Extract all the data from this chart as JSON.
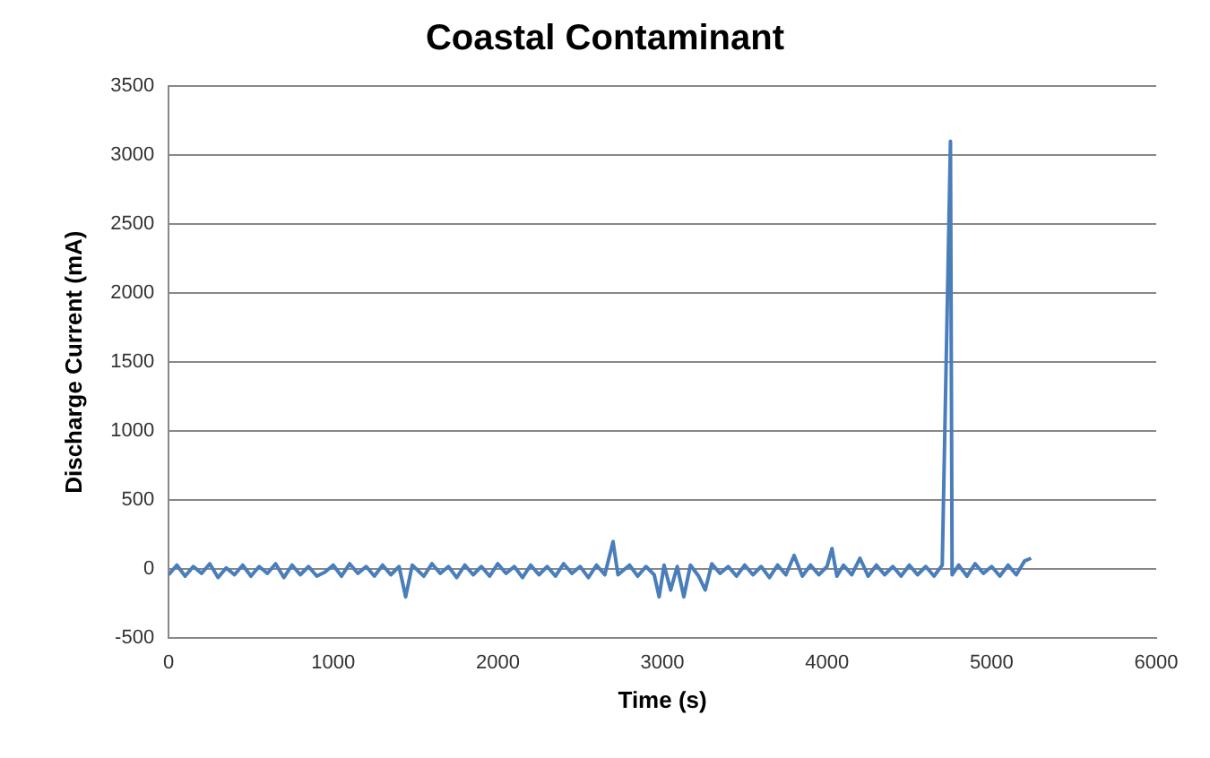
{
  "chart_data": {
    "type": "line",
    "title": "Coastal Contaminant",
    "xlabel": "Time (s)",
    "ylabel": "Discharge Current (mA)",
    "x": [
      0,
      50,
      100,
      150,
      200,
      250,
      300,
      350,
      400,
      450,
      500,
      550,
      600,
      650,
      700,
      750,
      800,
      850,
      900,
      950,
      1000,
      1050,
      1100,
      1150,
      1200,
      1250,
      1300,
      1350,
      1400,
      1440,
      1480,
      1550,
      1600,
      1650,
      1700,
      1750,
      1800,
      1850,
      1900,
      1950,
      2000,
      2050,
      2100,
      2150,
      2200,
      2250,
      2300,
      2350,
      2400,
      2450,
      2500,
      2550,
      2600,
      2650,
      2700,
      2730,
      2800,
      2850,
      2900,
      2950,
      2980,
      3010,
      3050,
      3090,
      3130,
      3170,
      3220,
      3260,
      3300,
      3350,
      3400,
      3450,
      3500,
      3550,
      3600,
      3650,
      3700,
      3750,
      3800,
      3850,
      3900,
      3950,
      4000,
      4030,
      4060,
      4100,
      4150,
      4200,
      4250,
      4300,
      4350,
      4400,
      4450,
      4500,
      4550,
      4600,
      4650,
      4700,
      4750,
      4760,
      4800,
      4850,
      4900,
      4950,
      5000,
      5050,
      5100,
      5150,
      5200,
      5240
    ],
    "series": [
      {
        "color": "#4a7ebb",
        "values": [
          -40,
          30,
          -50,
          20,
          -30,
          40,
          -60,
          10,
          -40,
          30,
          -50,
          20,
          -30,
          40,
          -60,
          30,
          -40,
          20,
          -50,
          -20,
          30,
          -50,
          40,
          -30,
          20,
          -50,
          30,
          -40,
          20,
          -200,
          30,
          -50,
          40,
          -30,
          20,
          -60,
          30,
          -40,
          20,
          -50,
          40,
          -30,
          20,
          -60,
          30,
          -40,
          20,
          -50,
          40,
          -30,
          20,
          -60,
          30,
          -40,
          200,
          -40,
          30,
          -50,
          20,
          -40,
          -200,
          30,
          -150,
          20,
          -200,
          30,
          -50,
          -150,
          40,
          -30,
          20,
          -50,
          30,
          -40,
          20,
          -60,
          30,
          -40,
          100,
          -50,
          30,
          -40,
          20,
          150,
          -50,
          30,
          -40,
          80,
          -50,
          30,
          -40,
          20,
          -50,
          30,
          -40,
          20,
          -50,
          30,
          3100,
          -40,
          30,
          -50,
          40,
          -30,
          20,
          -50,
          30,
          -40,
          60,
          80
        ]
      }
    ],
    "xlim": [
      0,
      6000
    ],
    "xticks": [
      0,
      1000,
      2000,
      3000,
      4000,
      5000,
      6000
    ],
    "ylim": [
      -500,
      3500
    ],
    "yticks": [
      -500,
      0,
      500,
      1000,
      1500,
      2000,
      2500,
      3000,
      3500
    ],
    "grid": "y",
    "marker": "none",
    "line_style": "solid"
  }
}
